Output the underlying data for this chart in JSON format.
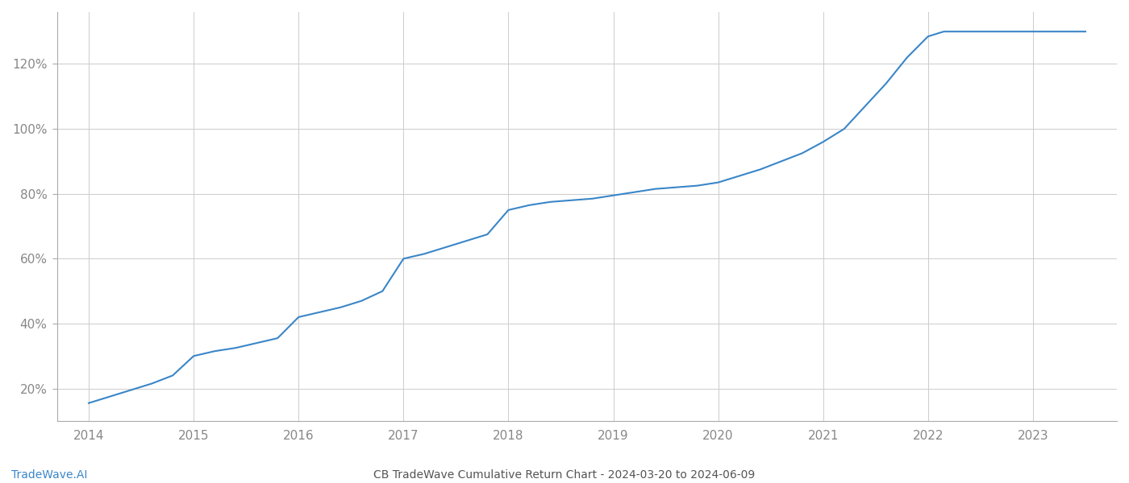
{
  "x_years": [
    2014.0,
    2014.2,
    2014.4,
    2014.6,
    2014.8,
    2015.0,
    2015.2,
    2015.4,
    2015.6,
    2015.8,
    2016.0,
    2016.2,
    2016.4,
    2016.6,
    2016.8,
    2017.0,
    2017.2,
    2017.4,
    2017.6,
    2017.8,
    2018.0,
    2018.2,
    2018.4,
    2018.6,
    2018.8,
    2019.0,
    2019.2,
    2019.4,
    2019.6,
    2019.8,
    2020.0,
    2020.2,
    2020.4,
    2020.6,
    2020.8,
    2021.0,
    2021.2,
    2021.4,
    2021.6,
    2021.8,
    2022.0,
    2022.15,
    2022.5,
    2022.75,
    2023.0,
    2023.3,
    2023.5
  ],
  "y_values": [
    0.155,
    0.175,
    0.195,
    0.215,
    0.24,
    0.3,
    0.315,
    0.325,
    0.34,
    0.355,
    0.42,
    0.435,
    0.45,
    0.47,
    0.5,
    0.6,
    0.615,
    0.635,
    0.655,
    0.675,
    0.75,
    0.765,
    0.775,
    0.78,
    0.785,
    0.795,
    0.805,
    0.815,
    0.82,
    0.825,
    0.835,
    0.855,
    0.875,
    0.9,
    0.925,
    0.96,
    1.0,
    1.07,
    1.14,
    1.22,
    1.285,
    1.3,
    1.3,
    1.3,
    1.3,
    1.3,
    1.3
  ],
  "line_color": "#3a86c8",
  "line_width": 1.5,
  "background_color": "#ffffff",
  "grid_color": "#cccccc",
  "title_bottom": "CB TradeWave Cumulative Return Chart - 2024-03-20 to 2024-06-09",
  "watermark": "TradeWave.AI",
  "watermark_color": "#3a86c8",
  "title_color": "#555555",
  "tick_color": "#888888",
  "yticks": [
    0.2,
    0.4,
    0.6,
    0.8,
    1.0,
    1.2
  ],
  "ytick_labels": [
    "20%",
    "40%",
    "60%",
    "80%",
    "100%",
    "120%"
  ],
  "xticks": [
    2014,
    2015,
    2016,
    2017,
    2018,
    2019,
    2020,
    2021,
    2022,
    2023
  ],
  "xlim": [
    2013.7,
    2023.8
  ],
  "ylim": [
    0.1,
    1.36
  ],
  "figsize": [
    14.0,
    6.0
  ],
  "dpi": 100
}
